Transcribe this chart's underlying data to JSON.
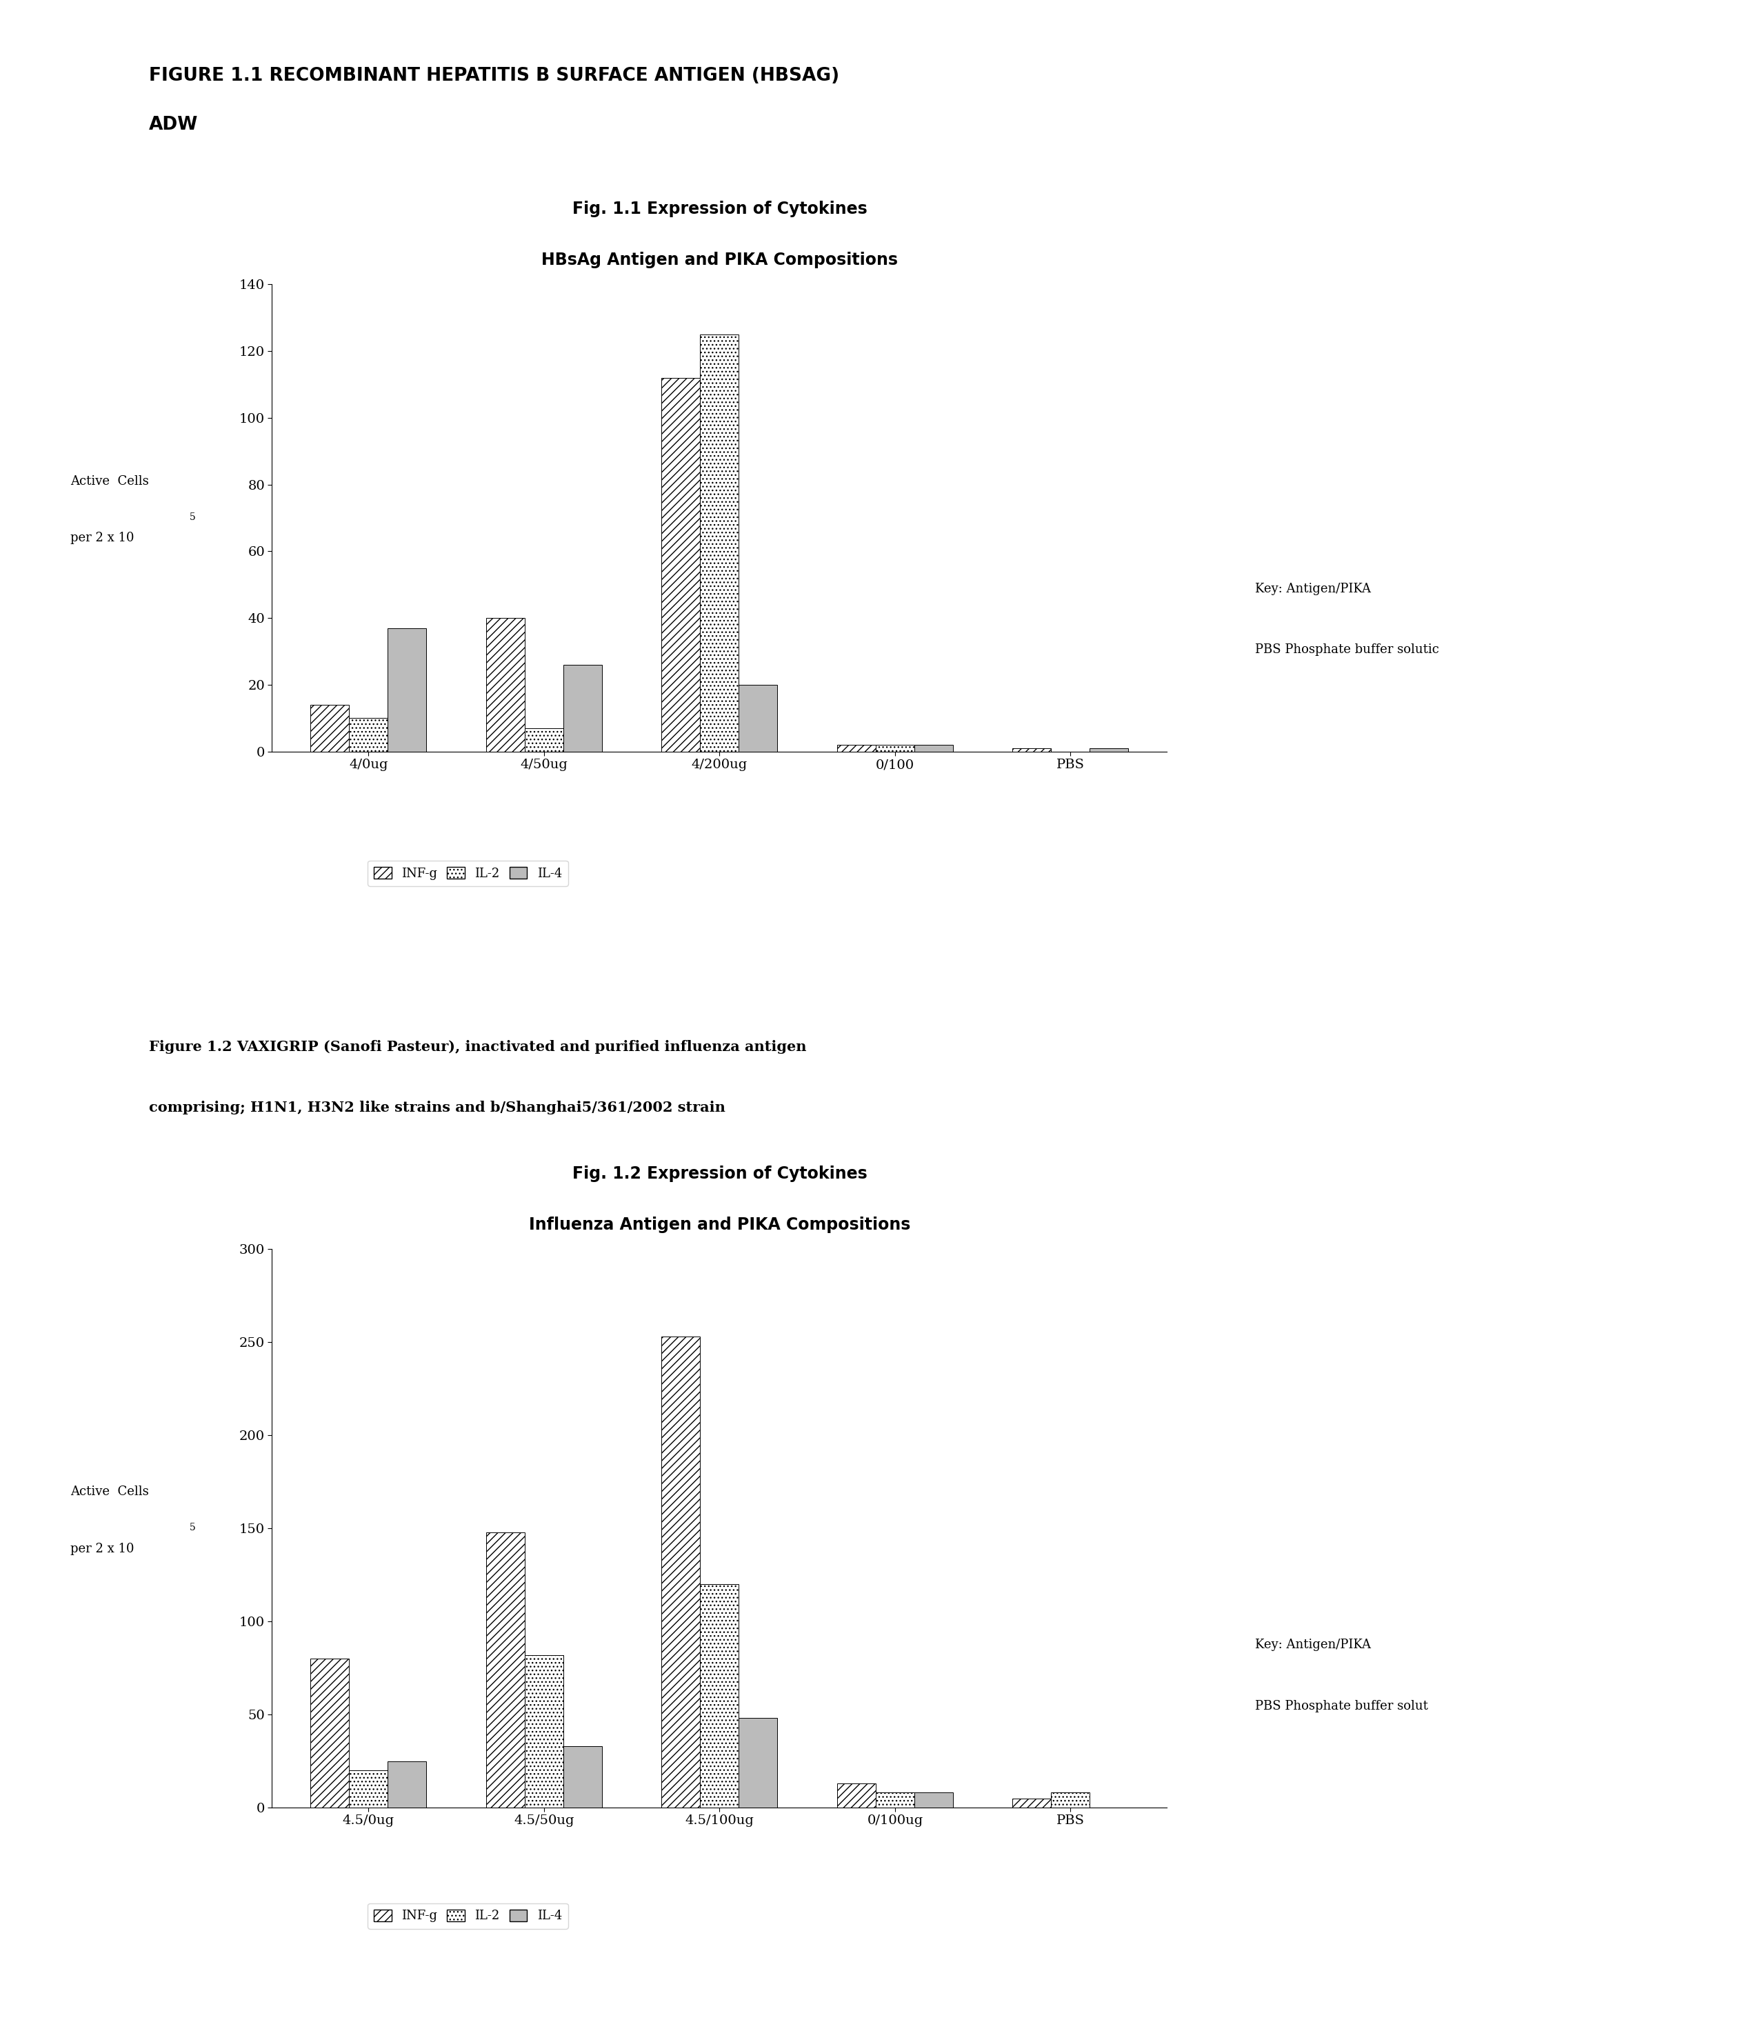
{
  "fig1_heading1": "FIGURE 1.1 RECOMBINANT HEPATITIS B SURFACE ANTIGEN (HBSAG)",
  "fig1_heading2": "ADW",
  "chart1_title_line1": "Fig. 1.1 Expression of Cytokines",
  "chart1_title_line2": "HBsAg Antigen and PIKA Compositions",
  "chart1_ylabel_line1": "Active  Cells",
  "chart1_ylabel_line2": "per 2 x 10",
  "chart1_ylabel_exp": "5",
  "chart1_categories": [
    "4/0ug",
    "4/50ug",
    "4/200ug",
    "0/100",
    "PBS"
  ],
  "chart1_INFg": [
    14,
    40,
    112,
    2,
    1
  ],
  "chart1_IL2": [
    10,
    7,
    125,
    2,
    0
  ],
  "chart1_IL4": [
    37,
    26,
    20,
    2,
    1
  ],
  "chart1_ylim": [
    0,
    140
  ],
  "chart1_yticks": [
    0,
    20,
    40,
    60,
    80,
    100,
    120,
    140
  ],
  "chart1_key_line1": "Key: Antigen/PIKA",
  "chart1_key_line2": "PBS Phosphate buffer solutic",
  "fig2_caption_line1": "Figure 1.2 VAXIGRIP (Sanofi Pasteur), inactivated and purified influenza antigen",
  "fig2_caption_line2": "comprising; H1N1, H3N2 like strains and b/Shanghai5/361/2002 strain",
  "chart2_title_line1": "Fig. 1.2 Expression of Cytokines",
  "chart2_title_line2": "Influenza Antigen and PIKA Compositions",
  "chart2_ylabel_line1": "Active  Cells",
  "chart2_ylabel_line2": "per 2 x 10",
  "chart2_ylabel_exp": "5",
  "chart2_categories": [
    "4.5/0ug",
    "4.5/50ug",
    "4.5/100ug",
    "0/100ug",
    "PBS"
  ],
  "chart2_INFg": [
    80,
    148,
    253,
    13,
    5
  ],
  "chart2_IL2": [
    20,
    82,
    120,
    8,
    8
  ],
  "chart2_IL4": [
    25,
    33,
    48,
    8,
    0
  ],
  "chart2_ylim": [
    0,
    300
  ],
  "chart2_yticks": [
    0,
    50,
    100,
    150,
    200,
    250,
    300
  ],
  "chart2_key_line1": "Key: Antigen/PIKA",
  "chart2_key_line2": "PBS Phosphate buffer solut",
  "legend_labels": [
    "INF-g",
    "IL-2",
    "IL-4"
  ],
  "bar_width": 0.22,
  "bg_color": "#ffffff"
}
